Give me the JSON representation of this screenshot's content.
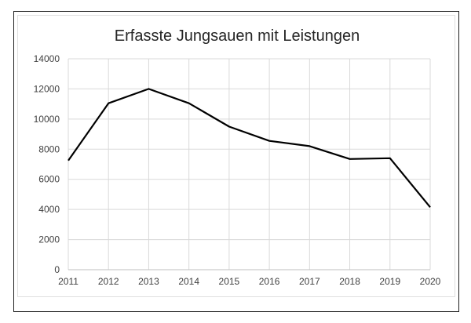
{
  "chart_data": {
    "type": "line",
    "title": "Erfasste Jungsauen mit Leistungen",
    "xlabel": "",
    "ylabel": "",
    "categories": [
      "2011",
      "2012",
      "2013",
      "2014",
      "2015",
      "2016",
      "2017",
      "2018",
      "2019",
      "2020"
    ],
    "series": [
      {
        "values": [
          7250,
          11050,
          12000,
          11050,
          9500,
          8550,
          8200,
          7350,
          7400,
          4150
        ]
      }
    ],
    "ylim": [
      0,
      14000
    ],
    "yticks": [
      0,
      2000,
      4000,
      6000,
      8000,
      10000,
      12000,
      14000
    ],
    "grid": true,
    "legend": "none",
    "colors": {
      "line": "#000000",
      "grid": "#d9d9d9",
      "axis": "#bfbfbf"
    }
  }
}
